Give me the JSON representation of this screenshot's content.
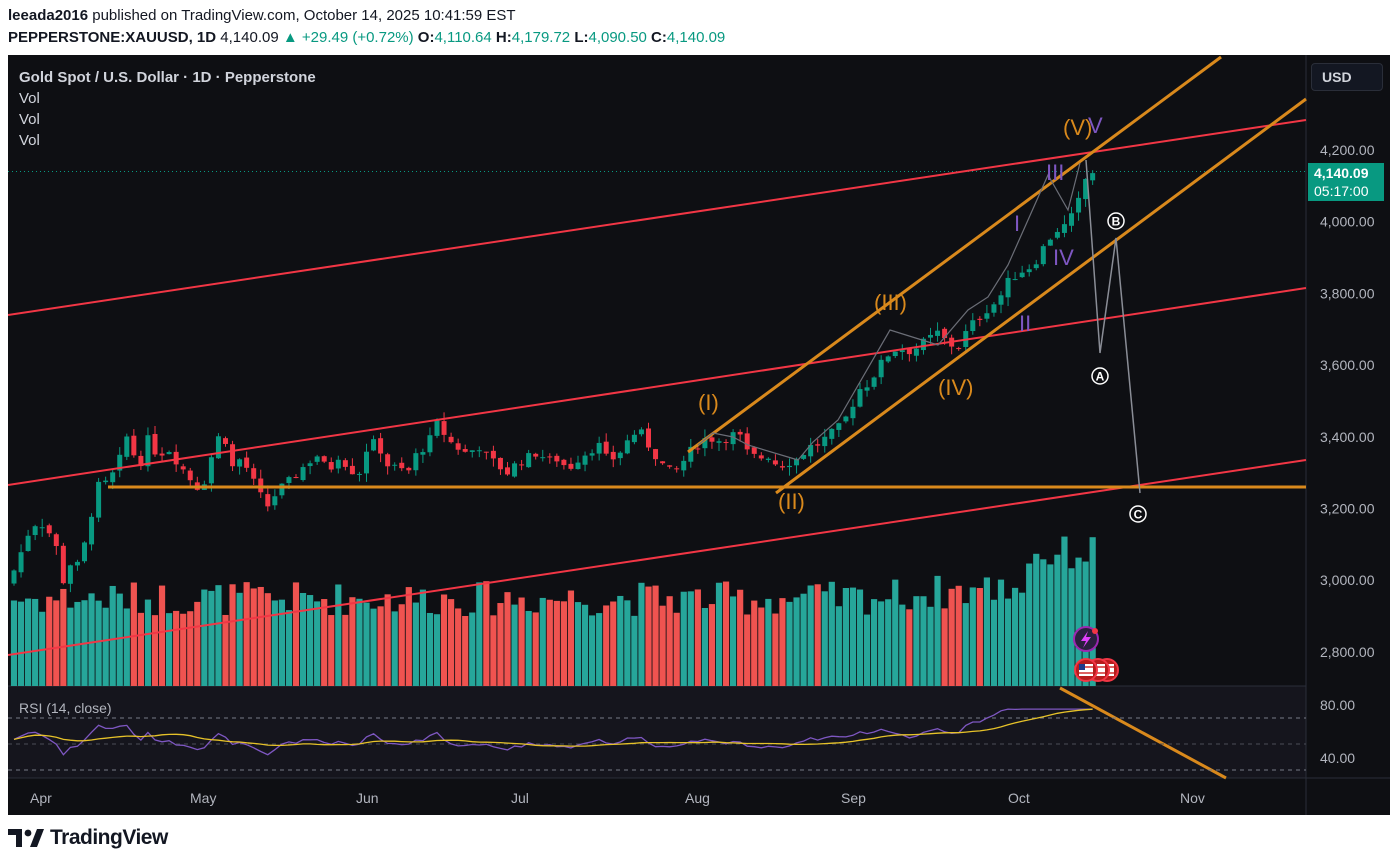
{
  "header": {
    "author": "leeada2016",
    "published_text": "published on TradingView.com, October 14, 2025 10:41:59 EST"
  },
  "symbol_line": {
    "symbol": "PEPPERSTONE:XAUUSD, 1D",
    "last": "4,140.09",
    "arrow": "▲",
    "change": "+29.49 (+0.72%)",
    "o_label": "O:",
    "o": "4,110.64",
    "h_label": "H:",
    "h": "4,179.72",
    "l_label": "L:",
    "l": "4,090.50",
    "c_label": "C:",
    "c": "4,140.09"
  },
  "legend": {
    "title": "Gold Spot / U.S. Dollar · 1D · Pepperstone",
    "indicators": [
      "Vol",
      "Vol",
      "Vol"
    ]
  },
  "currency_button": "USD",
  "price_tag": {
    "price": "4,140.09",
    "countdown": "05:17:00"
  },
  "price_axis": [
    "4,200.00",
    "4,000.00",
    "3,800.00",
    "3,600.00",
    "3,400.00",
    "3,200.00",
    "3,000.00",
    "2,800.00"
  ],
  "rsi": {
    "label": "RSI (14, close)",
    "axis": [
      "80.00",
      "40.00"
    ]
  },
  "time_axis": [
    "Apr",
    "May",
    "Jun",
    "Jul",
    "Aug",
    "Sep",
    "Oct",
    "Nov"
  ],
  "wave_labels": {
    "orange": [
      "(I)",
      "(II)",
      "(III)",
      "(IV)",
      "(V)"
    ],
    "purple": [
      "I",
      "II",
      "III",
      "IV",
      "V"
    ],
    "circled": [
      "A",
      "B",
      "C"
    ]
  },
  "brand": "TradingView",
  "colors": {
    "background": "#0e0f13",
    "up": "#089981",
    "down": "#f23645",
    "vol_up": "#26a69a",
    "vol_down": "#ef5350",
    "channel_red": "#f23645",
    "channel_orange": "#d9891c",
    "wave_purple": "#7e57c2",
    "rsi_line": "#7e57c2",
    "rsi_ma": "#e6c229"
  }
}
